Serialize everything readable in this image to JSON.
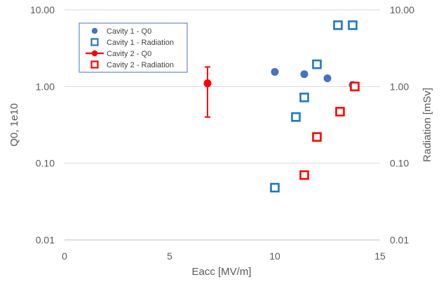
{
  "chart_data": {
    "type": "scatter",
    "xlabel": "Eacc [MV/m]",
    "ylabel": "Q0, 1e10",
    "y2label": "Radiation [mSv]",
    "xlim": [
      0,
      15
    ],
    "ylim": [
      0.01,
      10
    ],
    "y2lim": [
      0.01,
      10
    ],
    "yscale": "log",
    "y2scale": "log",
    "xticks": [
      0,
      5,
      10,
      15
    ],
    "xtick_labels": [
      "0",
      "5",
      "10",
      "15"
    ],
    "yticks": [
      0.01,
      0.1,
      1,
      10
    ],
    "ytick_labels": [
      "0.01",
      "0.10",
      "1.00",
      "10.00"
    ],
    "y2tick_labels": [
      "0.01",
      "0.10",
      "1.00",
      "10.00"
    ],
    "grid": "horizontal",
    "legend_position": "top-left",
    "series": [
      {
        "name": "Cavity 1 - Q0",
        "marker": "circle",
        "color": "#4472C4",
        "axis": "left",
        "points": [
          {
            "x": 10.0,
            "y": 1.55
          },
          {
            "x": 11.4,
            "y": 1.45
          },
          {
            "x": 12.5,
            "y": 1.28
          },
          {
            "x": 13.7,
            "y": 1.05
          }
        ]
      },
      {
        "name": "Cavity 1 - Radiation",
        "marker": "square-open",
        "color": "#1F77C4",
        "axis": "right",
        "points": [
          {
            "x": 10.0,
            "y": 0.048
          },
          {
            "x": 11.0,
            "y": 0.4
          },
          {
            "x": 11.4,
            "y": 0.72
          },
          {
            "x": 12.0,
            "y": 1.95
          },
          {
            "x": 13.0,
            "y": 6.3
          },
          {
            "x": 13.7,
            "y": 6.3
          }
        ]
      },
      {
        "name": "Cavity 2 - Q0",
        "marker": "circle-line",
        "color": "#FF0000",
        "axis": "left",
        "points": [
          {
            "x": 6.8,
            "y": 1.1,
            "err_low": 0.4,
            "err_high": 1.8
          }
        ]
      },
      {
        "name": "Cavity 2 - Radiation",
        "marker": "square-open",
        "color": "#FF0000",
        "axis": "right",
        "points": [
          {
            "x": 11.4,
            "y": 0.07
          },
          {
            "x": 12.0,
            "y": 0.22
          },
          {
            "x": 13.1,
            "y": 0.47
          },
          {
            "x": 13.8,
            "y": 1.0
          }
        ]
      }
    ]
  }
}
